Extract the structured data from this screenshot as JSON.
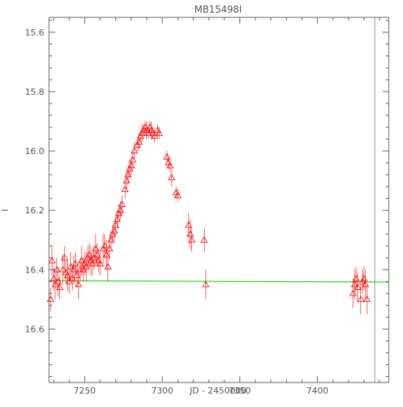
{
  "chart_data": {
    "type": "scatter",
    "title": "MB15498I",
    "xlabel": "JD - 2450000",
    "ylabel": "I",
    "xlim": [
      7227,
      7446
    ],
    "ylim": [
      16.78,
      15.55
    ],
    "y_inverted": true,
    "x_ticks": [
      7250,
      7300,
      7350,
      7400
    ],
    "x_tick_labels": [
      "7250",
      "7300",
      "7350",
      "7400"
    ],
    "y_ticks": [
      15.6,
      15.8,
      16.0,
      16.2,
      16.4,
      16.6
    ],
    "y_tick_labels": [
      "15.6",
      "15.8",
      "16.0",
      "16.2",
      "16.4",
      "16.6"
    ],
    "grid": false,
    "colors": {
      "points": "#ff0000",
      "model": "#00cc00",
      "vline": "#999999",
      "axes": "#666666"
    },
    "reference_line_x": 7437,
    "model_line": {
      "x": [
        7227,
        7446
      ],
      "y": [
        16.437,
        16.442
      ]
    },
    "series": [
      {
        "marker": "triangle-open",
        "x": [
          7228,
          7229,
          7230,
          7231,
          7232,
          7233,
          7234,
          7236,
          7237,
          7238,
          7239,
          7240,
          7241,
          7242,
          7243,
          7244,
          7245,
          7246,
          7247,
          7248,
          7249,
          7250,
          7251,
          7252,
          7253,
          7254,
          7255,
          7256,
          7257,
          7258,
          7259,
          7260,
          7262,
          7263,
          7264,
          7265,
          7266,
          7267,
          7268,
          7269,
          7270,
          7271,
          7272,
          7273,
          7274,
          7276,
          7277,
          7278,
          7279,
          7280,
          7281,
          7282,
          7284,
          7285,
          7286,
          7287,
          7288,
          7289,
          7290,
          7291,
          7292,
          7293,
          7294,
          7295,
          7297,
          7298,
          7303,
          7304,
          7305,
          7306,
          7309,
          7310,
          7317,
          7318,
          7319,
          7327,
          7328,
          7423,
          7424,
          7425,
          7426,
          7428,
          7429,
          7430,
          7431,
          7432
        ],
        "y": [
          16.5,
          16.37,
          16.43,
          16.45,
          16.4,
          16.44,
          16.46,
          16.4,
          16.36,
          16.41,
          16.42,
          16.44,
          16.39,
          16.43,
          16.4,
          16.38,
          16.42,
          16.45,
          16.4,
          16.37,
          16.4,
          16.38,
          16.39,
          16.36,
          16.35,
          16.37,
          16.38,
          16.36,
          16.33,
          16.35,
          16.37,
          16.38,
          16.33,
          16.32,
          16.35,
          16.39,
          16.33,
          16.3,
          16.28,
          16.27,
          16.25,
          16.23,
          16.21,
          16.2,
          16.18,
          16.13,
          16.1,
          16.08,
          16.06,
          16.05,
          16.03,
          16.0,
          15.98,
          15.97,
          15.95,
          15.94,
          15.93,
          15.92,
          15.93,
          15.94,
          15.92,
          15.93,
          15.94,
          15.95,
          15.93,
          15.94,
          16.02,
          16.04,
          16.05,
          16.09,
          16.14,
          16.15,
          16.25,
          16.28,
          16.3,
          16.3,
          16.45,
          16.48,
          16.45,
          16.43,
          16.46,
          16.5,
          16.44,
          16.43,
          16.45,
          16.5
        ],
        "yerr": [
          0.04,
          0.05,
          0.04,
          0.05,
          0.04,
          0.05,
          0.04,
          0.05,
          0.04,
          0.04,
          0.05,
          0.04,
          0.05,
          0.04,
          0.05,
          0.04,
          0.04,
          0.05,
          0.04,
          0.05,
          0.04,
          0.04,
          0.05,
          0.04,
          0.04,
          0.05,
          0.04,
          0.04,
          0.05,
          0.04,
          0.04,
          0.04,
          0.05,
          0.04,
          0.05,
          0.05,
          0.04,
          0.03,
          0.03,
          0.03,
          0.03,
          0.03,
          0.03,
          0.03,
          0.03,
          0.03,
          0.03,
          0.03,
          0.03,
          0.03,
          0.03,
          0.03,
          0.02,
          0.03,
          0.02,
          0.03,
          0.02,
          0.02,
          0.03,
          0.02,
          0.02,
          0.03,
          0.02,
          0.02,
          0.02,
          0.02,
          0.02,
          0.02,
          0.02,
          0.03,
          0.02,
          0.02,
          0.04,
          0.05,
          0.04,
          0.04,
          0.05,
          0.05,
          0.05,
          0.04,
          0.05,
          0.05,
          0.04,
          0.04,
          0.05,
          0.05
        ]
      }
    ]
  }
}
